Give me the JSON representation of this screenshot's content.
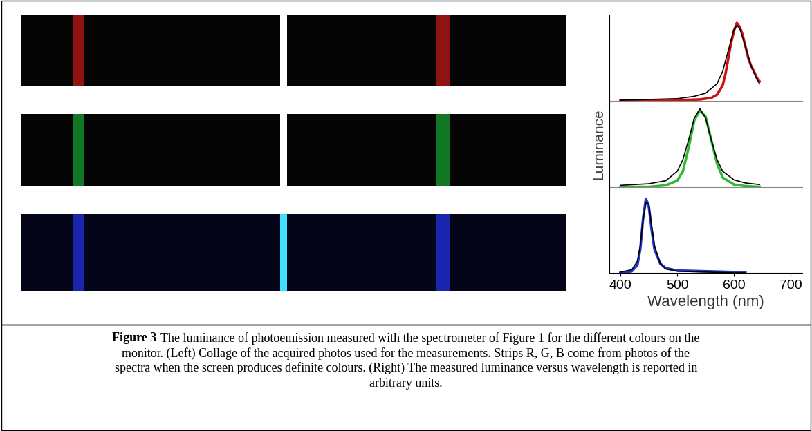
{
  "chart_data": [
    {
      "type": "line",
      "series": [
        {
          "color": "#d01010",
          "line_style": "solid",
          "x": [
            400,
            450,
            500,
            540,
            560,
            570,
            580,
            585,
            590,
            595,
            600,
            605,
            610,
            615,
            620,
            625,
            630,
            635,
            640,
            645
          ],
          "values": [
            0.01,
            0.01,
            0.01,
            0.02,
            0.04,
            0.08,
            0.2,
            0.35,
            0.55,
            0.75,
            0.9,
            1.0,
            0.95,
            0.85,
            0.7,
            0.55,
            0.45,
            0.38,
            0.3,
            0.25
          ]
        },
        {
          "color": "#000000",
          "line_style": "solid",
          "x": [
            400,
            450,
            500,
            530,
            550,
            570,
            580,
            590,
            600,
            605,
            610,
            620,
            630,
            640,
            645
          ],
          "values": [
            0.01,
            0.02,
            0.03,
            0.06,
            0.1,
            0.22,
            0.38,
            0.65,
            0.92,
            0.97,
            0.93,
            0.7,
            0.45,
            0.28,
            0.22
          ]
        }
      ],
      "xlim": [
        380,
        720
      ],
      "ylim": [
        0,
        1.1
      ],
      "xticks": [],
      "yticks": [],
      "tick_labels": false
    },
    {
      "type": "line",
      "y_label": "Luminance",
      "series": [
        {
          "color": "#33b833",
          "line_style": "solid",
          "x": [
            400,
            450,
            480,
            500,
            510,
            520,
            530,
            540,
            550,
            560,
            570,
            580,
            600,
            620,
            645
          ],
          "values": [
            0.0,
            0.0,
            0.02,
            0.08,
            0.2,
            0.5,
            0.85,
            0.98,
            0.9,
            0.6,
            0.3,
            0.12,
            0.03,
            0.01,
            0.0
          ]
        },
        {
          "color": "#000000",
          "line_style": "solid",
          "x": [
            400,
            450,
            480,
            500,
            510,
            520,
            530,
            540,
            550,
            560,
            570,
            580,
            600,
            620,
            645
          ],
          "values": [
            0.02,
            0.04,
            0.08,
            0.2,
            0.35,
            0.6,
            0.88,
            1.0,
            0.88,
            0.6,
            0.35,
            0.2,
            0.09,
            0.05,
            0.03
          ]
        }
      ],
      "xlim": [
        380,
        720
      ],
      "ylim": [
        0,
        1.1
      ],
      "xticks": [],
      "yticks": [],
      "tick_labels": false
    },
    {
      "type": "line",
      "x_label": "Wavelength (nm)",
      "series": [
        {
          "color": "#2233cc",
          "line_style": "solid",
          "x": [
            400,
            420,
            430,
            435,
            440,
            445,
            450,
            455,
            460,
            470,
            480,
            500,
            550,
            600,
            620
          ],
          "values": [
            0.0,
            0.02,
            0.1,
            0.3,
            0.7,
            0.95,
            0.85,
            0.55,
            0.3,
            0.12,
            0.06,
            0.03,
            0.02,
            0.01,
            0.01
          ]
        },
        {
          "color": "#000000",
          "line_style": "solid",
          "x": [
            400,
            420,
            430,
            435,
            440,
            445,
            450,
            455,
            460,
            470,
            480,
            500,
            550,
            600,
            620
          ],
          "values": [
            0.01,
            0.04,
            0.15,
            0.35,
            0.68,
            0.9,
            0.88,
            0.6,
            0.35,
            0.12,
            0.05,
            0.02,
            0.01,
            0.0,
            0.0
          ]
        }
      ],
      "xlim": [
        380,
        720
      ],
      "ylim": [
        0,
        1.1
      ],
      "xticks": [
        400,
        500,
        600,
        700
      ],
      "yticks": [],
      "tick_labels": "x"
    }
  ],
  "caption": {
    "label": "Figure 3",
    "lines": [
      "The luminance of photoemission measured with the spectrometer of Figure 1 for the different colours on the",
      "monitor. (Left) Collage of the acquired photos used for the measurements. Strips R, G, B come from photos of the",
      "spectra when the screen produces definite colours. (Right) The measured luminance versus wavelength is reported in",
      "arbitrary units."
    ]
  }
}
